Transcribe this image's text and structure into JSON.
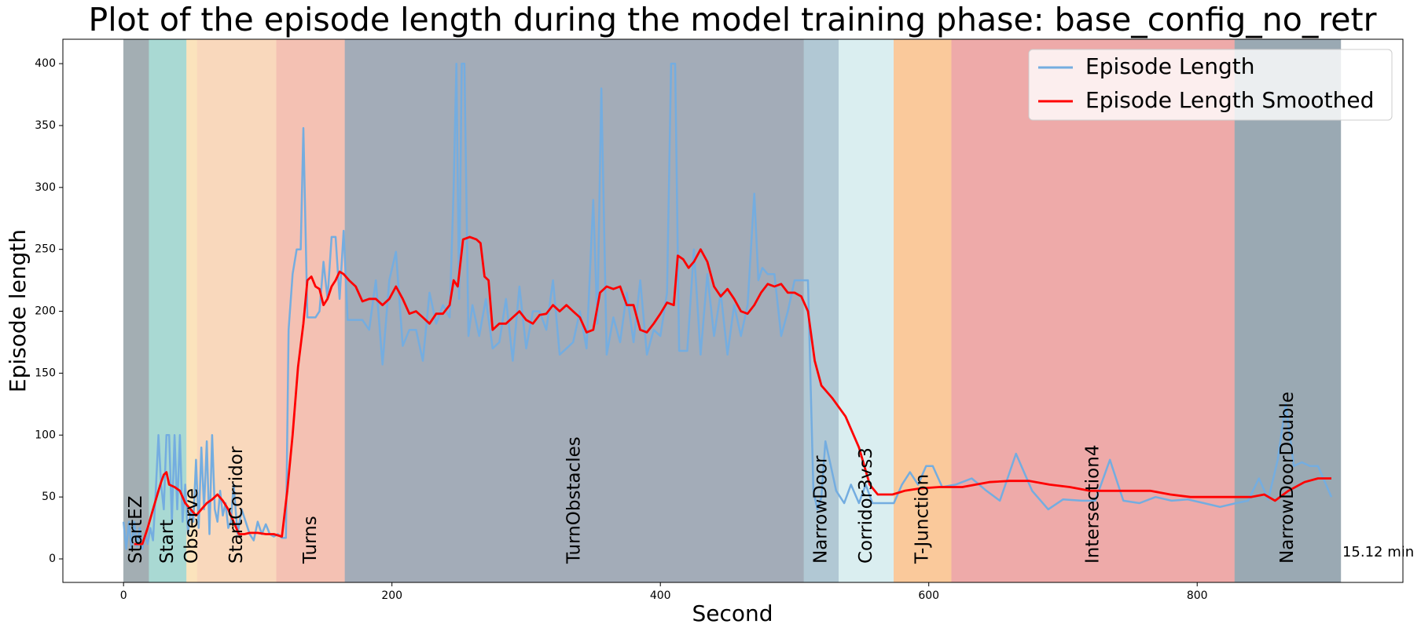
{
  "chart_data": {
    "type": "line",
    "title": "Plot of the episode length during the model training phase: base_config_no_retr",
    "xlabel": "Second",
    "ylabel": "Episode length",
    "xlim": [
      -45.2,
      953.3
    ],
    "ylim": [
      -19,
      419.7
    ],
    "xticks": [
      0,
      200,
      400,
      600,
      800
    ],
    "yticks": [
      0,
      50,
      100,
      150,
      200,
      250,
      300,
      350,
      400
    ],
    "legend": "upper right",
    "annotation": "15.12 min",
    "phases": [
      {
        "label": "StartEZ",
        "start": 0,
        "end": 19,
        "color": "#a3aeb3"
      },
      {
        "label": "Start",
        "start": 19,
        "end": 47,
        "color": "#a9d9d3"
      },
      {
        "label": "Observe",
        "start": 47,
        "end": 55,
        "color": "#fbe3bc"
      },
      {
        "label": "StartCorridor",
        "start": 55,
        "end": 114,
        "color": "#f9d8bc"
      },
      {
        "label": "Turns",
        "start": 114,
        "end": 165,
        "color": "#f4c1b3"
      },
      {
        "label": "TurnObstacles",
        "start": 165,
        "end": 507,
        "color": "#a3acb8"
      },
      {
        "label": "NarrowDoor",
        "start": 507,
        "end": 533,
        "color": "#b1c8d4"
      },
      {
        "label": "Corridor3vs3",
        "start": 533,
        "end": 574,
        "color": "#daeef0"
      },
      {
        "label": "T-Junction",
        "start": 574,
        "end": 617,
        "color": "#fac99b"
      },
      {
        "label": "Intersection4",
        "start": 617,
        "end": 828,
        "color": "#eeaaa9"
      },
      {
        "label": "NarrowDoorDouble",
        "start": 828,
        "end": 907,
        "color": "#9aa9b3"
      }
    ],
    "series": [
      {
        "name": "Episode Length",
        "color": "#74ade0",
        "x": [
          0,
          2,
          4,
          6,
          8,
          10,
          12,
          14,
          16,
          18,
          20,
          22,
          24,
          26,
          28,
          30,
          32,
          34,
          36,
          38,
          40,
          42,
          44,
          46,
          48,
          50,
          52,
          54,
          56,
          58,
          60,
          62,
          64,
          66,
          68,
          70,
          72,
          74,
          76,
          78,
          80,
          82,
          85,
          88,
          91,
          94,
          97,
          100,
          103,
          106,
          109,
          112,
          115,
          118,
          121,
          123,
          126,
          129,
          132,
          134,
          137,
          140,
          143,
          146,
          149,
          152,
          155,
          158,
          161,
          164,
          167,
          172,
          178,
          183,
          188,
          193,
          198,
          203,
          208,
          213,
          218,
          223,
          228,
          233,
          238,
          243,
          246,
          248,
          250,
          252,
          254,
          257,
          260,
          265,
          270,
          275,
          280,
          285,
          290,
          295,
          300,
          305,
          310,
          315,
          320,
          325,
          330,
          335,
          340,
          345,
          350,
          353,
          356,
          360,
          365,
          370,
          375,
          380,
          385,
          390,
          395,
          400,
          405,
          408,
          411,
          414,
          420,
          425,
          430,
          435,
          440,
          445,
          450,
          455,
          460,
          465,
          470,
          473,
          476,
          480,
          485,
          490,
          495,
          500,
          505,
          507,
          510,
          514,
          517,
          520,
          523,
          527,
          531,
          537,
          542,
          548,
          553,
          558,
          565,
          574,
          580,
          586,
          592,
          598,
          603,
          610,
          620,
          632,
          643,
          653,
          665,
          677,
          689,
          700,
          714,
          724,
          735,
          745,
          757,
          769,
          781,
          793,
          805,
          817,
          829,
          838,
          846,
          853,
          860,
          866,
          872,
          878,
          884,
          890,
          900
        ],
        "values": [
          30,
          8,
          30,
          8,
          30,
          10,
          25,
          8,
          20,
          12,
          25,
          15,
          55,
          100,
          60,
          40,
          100,
          100,
          30,
          100,
          40,
          100,
          30,
          60,
          20,
          40,
          30,
          80,
          25,
          90,
          40,
          95,
          20,
          100,
          40,
          30,
          55,
          35,
          45,
          25,
          30,
          60,
          20,
          40,
          30,
          20,
          15,
          30,
          20,
          28,
          20,
          18,
          20,
          17,
          17,
          185,
          230,
          250,
          250,
          348,
          195,
          195,
          195,
          200,
          240,
          210,
          260,
          260,
          210,
          265,
          193,
          193,
          193,
          185,
          225,
          157,
          225,
          248,
          172,
          185,
          185,
          160,
          215,
          190,
          205,
          195,
          300,
          400,
          210,
          400,
          400,
          180,
          205,
          180,
          210,
          170,
          175,
          210,
          160,
          220,
          170,
          200,
          200,
          185,
          225,
          165,
          170,
          175,
          200,
          170,
          290,
          190,
          380,
          165,
          195,
          175,
          215,
          175,
          225,
          165,
          185,
          180,
          215,
          400,
          400,
          168,
          168,
          250,
          165,
          230,
          180,
          215,
          165,
          205,
          180,
          205,
          295,
          225,
          235,
          230,
          230,
          180,
          200,
          225,
          225,
          225,
          225,
          55,
          40,
          50,
          95,
          75,
          55,
          45,
          60,
          45,
          60,
          45,
          45,
          45,
          60,
          70,
          60,
          75,
          75,
          58,
          60,
          65,
          55,
          47,
          85,
          55,
          40,
          48,
          47,
          47,
          80,
          47,
          45,
          50,
          47,
          48,
          45,
          42,
          45,
          47,
          65,
          48,
          80,
          125,
          75,
          78,
          75,
          75,
          50
        ]
      },
      {
        "name": "Episode Length Smoothed",
        "color": "#ff0000",
        "x": [
          8,
          14,
          18,
          22,
          26,
          28,
          30,
          32,
          34,
          38,
          42,
          46,
          50,
          54,
          58,
          62,
          66,
          70,
          74,
          78,
          82,
          86,
          90,
          94,
          100,
          106,
          112,
          118,
          122,
          126,
          130,
          134,
          137,
          140,
          143,
          146,
          149,
          152,
          155,
          158,
          161,
          164,
          168,
          173,
          178,
          183,
          188,
          193,
          198,
          203,
          208,
          213,
          218,
          223,
          228,
          233,
          238,
          243,
          246,
          249,
          253,
          258,
          263,
          266,
          269,
          272,
          275,
          280,
          285,
          290,
          295,
          300,
          305,
          310,
          315,
          320,
          325,
          330,
          335,
          340,
          345,
          350,
          355,
          360,
          365,
          370,
          375,
          380,
          385,
          390,
          395,
          400,
          405,
          410,
          413,
          417,
          421,
          425,
          430,
          435,
          440,
          445,
          450,
          455,
          460,
          465,
          470,
          475,
          480,
          485,
          490,
          495,
          500,
          505,
          510,
          515,
          520,
          528,
          538,
          548,
          556,
          562,
          573,
          582,
          594,
          608,
          625,
          645,
          660,
          675,
          690,
          705,
          720,
          735,
          750,
          765,
          780,
          795,
          810,
          825,
          840,
          850,
          858,
          868,
          880,
          890,
          900
        ],
        "values": [
          12,
          12,
          25,
          40,
          55,
          62,
          68,
          70,
          60,
          58,
          55,
          45,
          40,
          35,
          40,
          45,
          48,
          52,
          47,
          40,
          30,
          20,
          20,
          21,
          21,
          20,
          20,
          18,
          55,
          100,
          155,
          190,
          225,
          228,
          220,
          218,
          205,
          210,
          220,
          225,
          232,
          230,
          225,
          220,
          208,
          210,
          210,
          205,
          210,
          220,
          210,
          198,
          200,
          195,
          190,
          198,
          198,
          205,
          225,
          220,
          258,
          260,
          258,
          255,
          228,
          225,
          185,
          190,
          190,
          195,
          200,
          193,
          190,
          197,
          198,
          205,
          200,
          205,
          200,
          195,
          183,
          185,
          215,
          220,
          218,
          220,
          205,
          205,
          185,
          183,
          190,
          198,
          207,
          205,
          245,
          242,
          235,
          240,
          250,
          240,
          220,
          212,
          218,
          210,
          200,
          198,
          205,
          215,
          222,
          220,
          222,
          215,
          215,
          212,
          200,
          160,
          140,
          130,
          115,
          90,
          60,
          52,
          52,
          55,
          57,
          58,
          58,
          62,
          63,
          63,
          60,
          58,
          55,
          55,
          55,
          55,
          52,
          50,
          50,
          50,
          50,
          52,
          47,
          55,
          62,
          65,
          65
        ]
      }
    ]
  }
}
